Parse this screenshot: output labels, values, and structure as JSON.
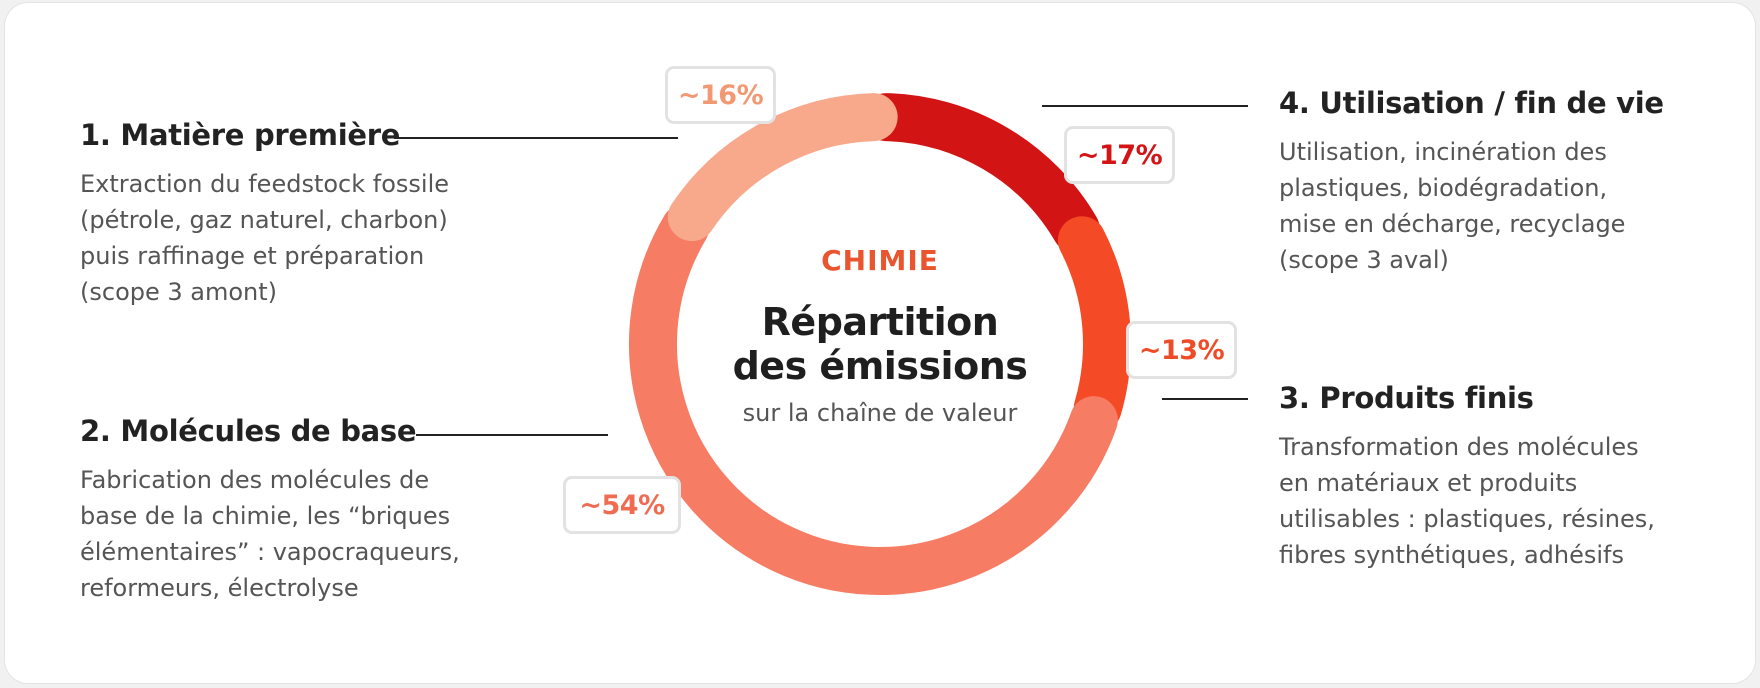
{
  "stages": {
    "matiere": {
      "title": "1. Matière première",
      "desc": [
        "Extraction du feedstock fossile",
        "(pétrole, gaz naturel, charbon)",
        "puis raffinage et préparation",
        "(scope 3 amont)"
      ]
    },
    "molecules": {
      "title": "2. Molécules de base",
      "desc": [
        "Fabrication des molécules de",
        "base de la chimie, les “briques",
        "élémentaires” : vapocraqueurs,",
        "reformeurs, électrolyse"
      ]
    },
    "produits": {
      "title": "3. Produits finis",
      "desc": [
        "Transformation des molécules",
        "en matériaux et produits",
        "utilisables : plastiques, résines,",
        "fibres synthétiques, adhésifs"
      ]
    },
    "utilisation": {
      "title": "4. Utilisation / fin de vie",
      "desc": [
        "Utilisation, incinération des",
        "plastiques, biodégradation,",
        "mise en décharge, recyclage",
        "(scope 3 aval)"
      ]
    }
  },
  "center": {
    "kicker": "CHIMIE",
    "title_line1": "Répartition",
    "title_line2": "des émissions",
    "subtitle": "sur la chaîne de valeur"
  },
  "chart_data": {
    "type": "pie",
    "variant": "donut",
    "title": "Répartition des émissions",
    "start": "top",
    "direction": "clockwise",
    "slices": [
      {
        "name": "4. Utilisation / fin de vie",
        "value": 17,
        "label": "~17%",
        "color": "#d31414"
      },
      {
        "name": "3. Produits finis",
        "value": 13,
        "label": "~13%",
        "color": "#f44a25"
      },
      {
        "name": "2. Molécules de base",
        "value": 54,
        "label": "~54%",
        "color": "#f67c64"
      },
      {
        "name": "1. Matière première",
        "value": 16,
        "label": "~16%",
        "color": "#f8a88b"
      }
    ]
  }
}
